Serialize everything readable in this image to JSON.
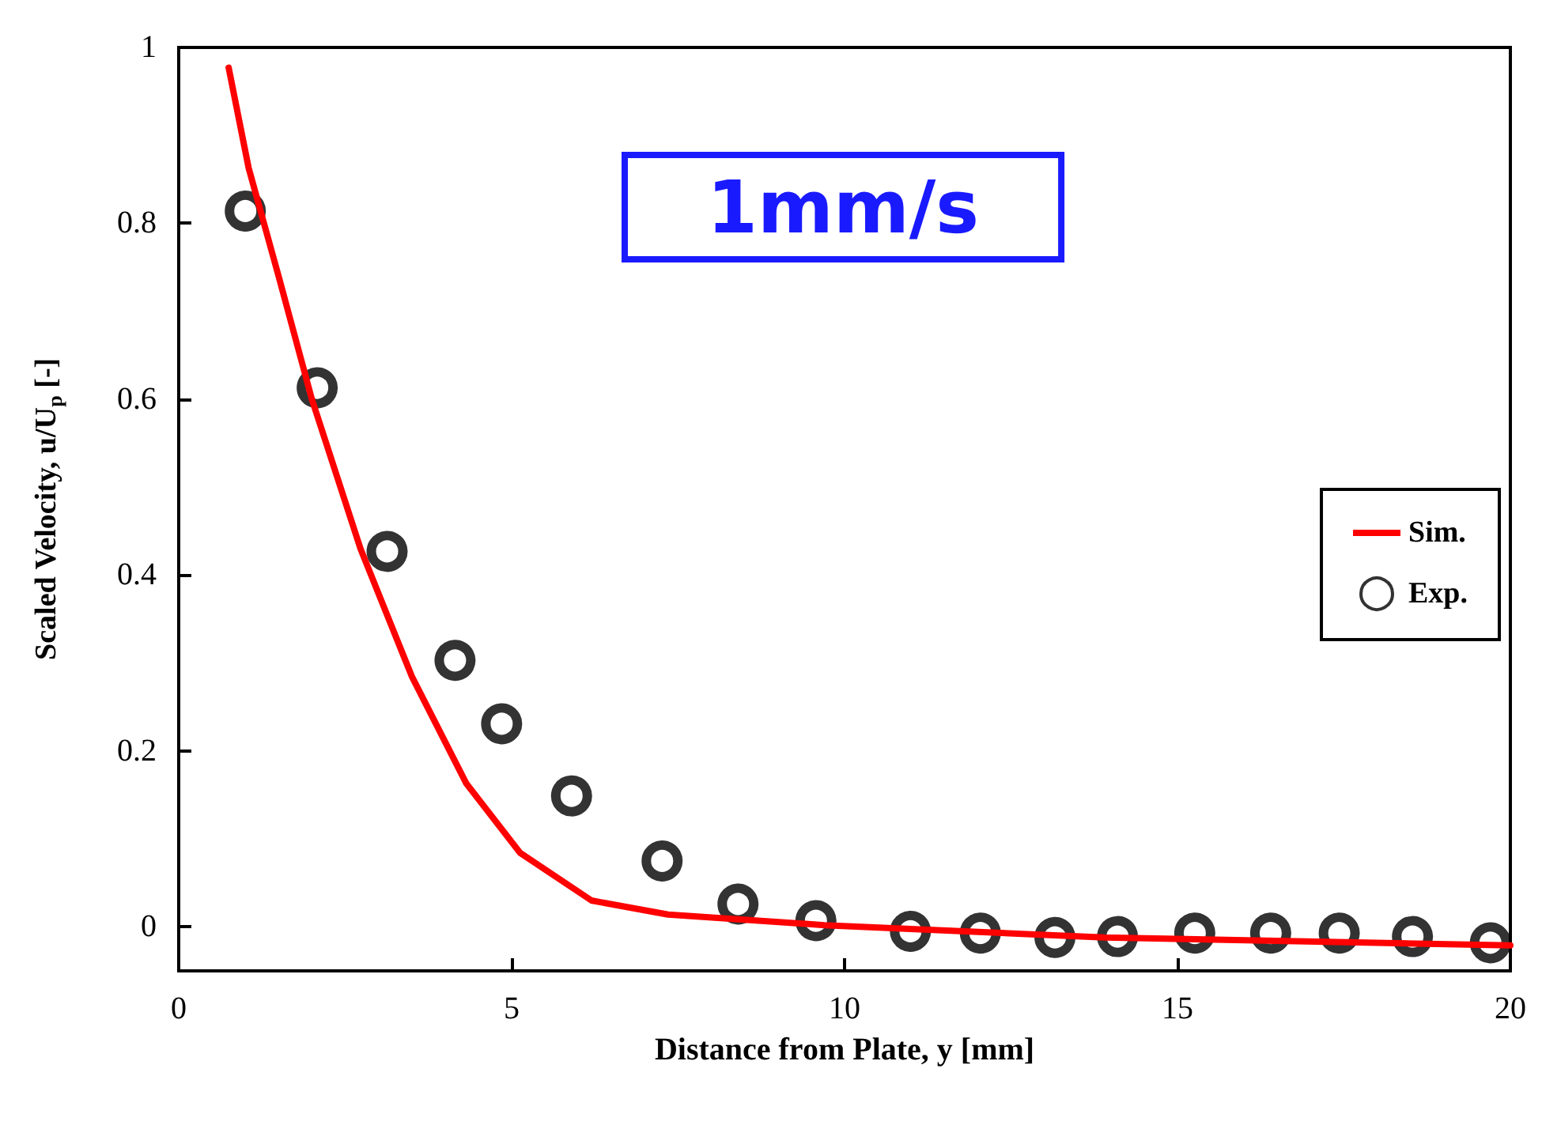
{
  "chart_data": {
    "type": "line",
    "xlabel": "Distance from Plate, y [mm]",
    "ylabel": "Scaled Velocity, u/U$_{p}$ [-]",
    "annotations": [
      "1mm/s"
    ],
    "xlim": [
      0,
      20
    ],
    "xticks": [
      0,
      5,
      10,
      15,
      20
    ],
    "ylim": [
      -0.05,
      1
    ],
    "yticks": [
      0,
      0.2,
      0.4,
      0.6,
      0.8,
      1
    ],
    "grid": false,
    "legend": "right",
    "series": [
      {
        "name": "Sim.",
        "color": "#ff0000",
        "marker": "none",
        "line_style": "solid",
        "x": [
          0.75,
          1.05,
          1.5,
          2.0,
          2.73,
          3.5,
          4.32,
          5.13,
          6.2,
          7.35,
          9.7,
          13.9,
          20
        ],
        "values": [
          0.977,
          0.863,
          0.74,
          0.6,
          0.43,
          0.285,
          0.163,
          0.084,
          0.03,
          0.014,
          0.002,
          -0.012,
          -0.021
        ]
      },
      {
        "name": "Exp.",
        "type": "scatter",
        "color": "#000000",
        "marker": "circle",
        "x": [
          1.0,
          2.08,
          3.13,
          4.15,
          4.85,
          5.9,
          7.26,
          8.4,
          9.57,
          10.99,
          12.04,
          13.16,
          14.1,
          15.26,
          16.4,
          17.43,
          18.53,
          19.7
        ],
        "values": [
          0.814,
          0.613,
          0.427,
          0.303,
          0.231,
          0.149,
          0.075,
          0.026,
          0.007,
          -0.005,
          -0.007,
          -0.012,
          -0.011,
          -0.007,
          -0.007,
          -0.007,
          -0.011,
          -0.018
        ]
      }
    ]
  }
}
